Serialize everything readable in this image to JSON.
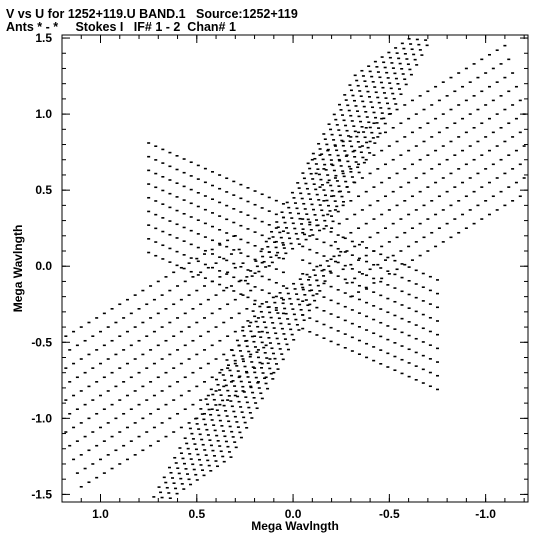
{
  "header": {
    "line1": "V vs U for 1252+119.U BAND.1   Source:1252+119",
    "line2": "Ants * - *     Stokes I   IF# 1 - 2  Chan# 1"
  },
  "chart_data": {
    "type": "scatter",
    "title": "V vs U for 1252+119.U BAND.1   Source:1252+119",
    "subtitle": "Ants * - *     Stokes I   IF# 1 - 2  Chan# 1",
    "xlabel": "Mega Wavlngth",
    "ylabel": "Mega Wavlngth",
    "xlim": [
      1.2,
      -1.22
    ],
    "ylim": [
      -1.55,
      1.52
    ],
    "x_inverted": true,
    "grid": false,
    "legend": "none",
    "x_ticks": [
      1.0,
      0.5,
      0.0,
      -0.5,
      -1.0
    ],
    "x_tick_labels": [
      "1.0",
      "0.5",
      "0.0",
      "-0.5",
      "-1.0"
    ],
    "y_ticks": [
      1.5,
      1.0,
      0.5,
      0.0,
      -0.5,
      -1.0,
      -1.5
    ],
    "y_tick_labels": [
      "1.5",
      "1.0",
      "0.5",
      "0.0",
      "-0.5",
      "-1.0",
      "-1.5"
    ],
    "marker_color": "#000000",
    "point_sets": [
      {
        "name": "tracks-right",
        "start": [
          -0.2,
          0.25
        ],
        "end": [
          -1.2,
          1.0
        ],
        "tracks": 11,
        "step": [
          -0.02,
          -0.09
        ],
        "points": 26,
        "arc": 0.0
      },
      {
        "name": "tracks-left",
        "start": [
          0.2,
          -0.25
        ],
        "end": [
          1.2,
          -1.0
        ],
        "tracks": 11,
        "step": [
          0.02,
          0.09
        ],
        "points": 26,
        "arc": 0.0
      },
      {
        "name": "vertical-up",
        "start": [
          0.02,
          0.1
        ],
        "end": [
          -0.55,
          1.45
        ],
        "tracks": 14,
        "step": [
          0.035,
          -0.03
        ],
        "points": 22,
        "arc": 0.0
      },
      {
        "name": "vertical-down",
        "start": [
          -0.02,
          -0.1
        ],
        "end": [
          0.55,
          -1.45
        ],
        "tracks": 14,
        "step": [
          -0.035,
          0.03
        ],
        "points": 22,
        "arc": 0.0
      },
      {
        "name": "diag-upper-left",
        "start": [
          0.05,
          0.05
        ],
        "end": [
          0.75,
          0.45
        ],
        "tracks": 9,
        "step": [
          0.0,
          -0.09
        ],
        "points": 20,
        "arc": 0.0
      },
      {
        "name": "diag-lower-right",
        "start": [
          -0.05,
          -0.05
        ],
        "end": [
          -0.75,
          -0.45
        ],
        "tracks": 9,
        "step": [
          0.0,
          0.09
        ],
        "points": 20,
        "arc": 0.0
      }
    ]
  }
}
